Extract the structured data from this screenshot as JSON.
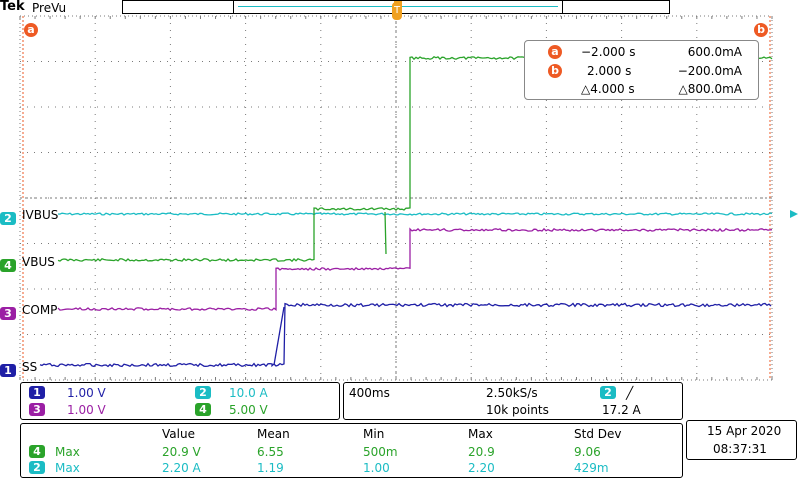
{
  "brand": {
    "logo": "Tek",
    "mode": "PreVu"
  },
  "colors": {
    "ch1": "#1f1fa6",
    "ch2": "#1bbcc4",
    "ch3": "#9b1fa4",
    "ch4": "#2aa32a",
    "cursor": "#ee5a24",
    "grid": "#7a7a7a"
  },
  "cursor_labels": {
    "a": "a",
    "b": "b",
    "trigger": "T"
  },
  "cursor_readout": {
    "a_time": "−2.000 s",
    "a_value": "600.0mA",
    "b_time": "2.000 s",
    "b_value": "−200.0mA",
    "delta_time": "△4.000 s",
    "delta_value": "△800.0mA"
  },
  "channel_labels": {
    "ch2": "IVBUS",
    "ch4": "VBUS",
    "ch3": "COMP",
    "ch1": "SS"
  },
  "channel_markers": {
    "ch2": "2",
    "ch4": "4",
    "ch3": "3",
    "ch1": "1"
  },
  "vertical": {
    "ch1_num": "1",
    "ch1_scale": "1.00 V",
    "ch2_num": "2",
    "ch2_scale": "10.0 A",
    "ch3_num": "3",
    "ch3_scale": "1.00 V",
    "ch4_num": "4",
    "ch4_scale": "5.00 V"
  },
  "horizontal": {
    "timebase": "400ms",
    "sample_rate": "2.50kS/s",
    "record_length": "10k points",
    "trigger_channel": "2",
    "trigger_slope": "╱",
    "trigger_level": "17.2 A"
  },
  "measurements": {
    "headers": [
      "Value",
      "Mean",
      "Min",
      "Max",
      "Std Dev"
    ],
    "rows": [
      {
        "channel": "4",
        "type": "Max",
        "value": "20.9 V",
        "mean": "6.55",
        "min": "500m",
        "max": "20.9",
        "stddev": "9.06"
      },
      {
        "channel": "2",
        "type": "Max",
        "value": "2.20 A",
        "mean": "1.19",
        "min": "1.00",
        "max": "2.20",
        "stddev": "429m"
      }
    ]
  },
  "datetime": {
    "date": "15 Apr  2020",
    "time": "08:37:31"
  }
}
